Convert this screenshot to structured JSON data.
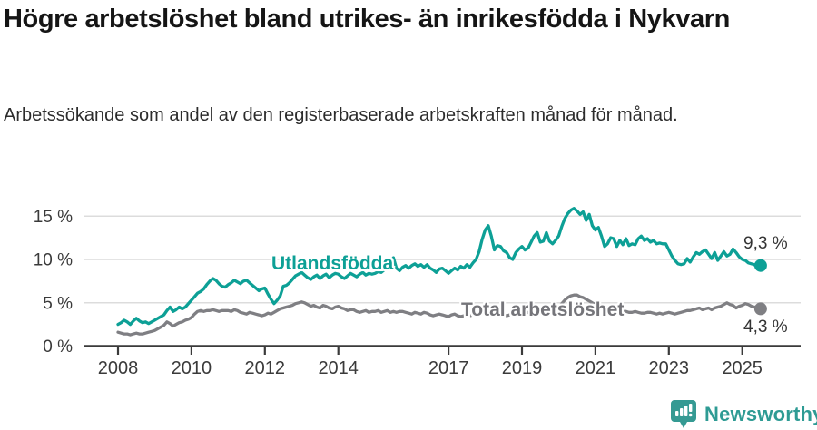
{
  "title": "Högre arbetslöshet bland utrikes- än inrikesfödda i Nykvarn",
  "subtitle": "Arbetssökande som andel av den registerbaserade arbetskraften månad för månad.",
  "branding": {
    "logo_text": "Newsworthy",
    "logo_color": "#2e9b94"
  },
  "chart_data": {
    "type": "line",
    "title": "Högre arbetslöshet bland utrikes- än inrikesfödda i Nykvarn",
    "subtitle": "Arbetssökande som andel av den registerbaserade arbetskraften månad för månad.",
    "xlabel": "",
    "ylabel": "",
    "grid": true,
    "legend_position": "inline-labels",
    "x_unit": "year-month",
    "x_start": 2008.0,
    "x_step": 0.0833333,
    "x_ticks": [
      2008,
      2010,
      2012,
      2014,
      2017,
      2019,
      2021,
      2023,
      2025
    ],
    "x_tick_labels": [
      "2008",
      "2010",
      "2012",
      "2014",
      "2017",
      "2019",
      "2021",
      "2023",
      "2025"
    ],
    "y_ticks": [
      0,
      5,
      10,
      15
    ],
    "y_tick_labels": [
      "0 %",
      "5 %",
      "10 %",
      "15 %"
    ],
    "ylim": [
      0,
      17.5
    ],
    "xlim": [
      2007.1,
      2026.6
    ],
    "series": [
      {
        "name": "Utlandsfödda",
        "color": "#0da096",
        "end_label": "9,3 %",
        "last_value": 9.3,
        "values": [
          2.5,
          2.7,
          3.0,
          2.8,
          2.5,
          2.9,
          3.2,
          2.9,
          2.7,
          2.8,
          2.6,
          2.8,
          3.0,
          3.2,
          3.4,
          3.6,
          4.1,
          4.5,
          4.0,
          4.2,
          4.5,
          4.3,
          4.5,
          4.9,
          5.3,
          5.7,
          6.1,
          6.3,
          6.6,
          7.1,
          7.5,
          7.8,
          7.6,
          7.2,
          6.9,
          6.8,
          7.1,
          7.3,
          7.6,
          7.4,
          7.2,
          7.5,
          7.6,
          7.3,
          7.0,
          6.7,
          6.4,
          6.6,
          6.7,
          6.0,
          5.4,
          4.9,
          5.3,
          5.8,
          6.9,
          7.0,
          7.3,
          7.7,
          8.1,
          8.3,
          8.5,
          8.2,
          7.9,
          7.7,
          8.0,
          8.2,
          7.8,
          8.1,
          8.3,
          7.9,
          8.2,
          8.4,
          8.3,
          8.0,
          7.8,
          8.1,
          8.4,
          8.2,
          8.0,
          8.3,
          8.5,
          8.2,
          8.4,
          8.3,
          8.4,
          8.6,
          8.5,
          8.8,
          9.2,
          9.6,
          10.2,
          9.0,
          8.7,
          9.1,
          9.3,
          9.0,
          9.3,
          9.5,
          9.2,
          9.4,
          9.1,
          9.4,
          9.0,
          8.8,
          8.5,
          8.9,
          9.0,
          8.7,
          8.4,
          8.7,
          9.0,
          8.8,
          9.2,
          9.0,
          9.4,
          9.1,
          9.6,
          10.0,
          10.9,
          12.3,
          13.4,
          13.9,
          12.7,
          11.1,
          11.6,
          11.5,
          11.0,
          10.8,
          10.2,
          10.0,
          10.8,
          11.2,
          11.5,
          11.1,
          11.3,
          12.0,
          12.7,
          13.1,
          12.0,
          12.1,
          13.1,
          12.1,
          11.8,
          12.2,
          12.7,
          13.8,
          14.7,
          15.3,
          15.7,
          15.9,
          15.6,
          15.2,
          15.5,
          14.5,
          15.2,
          13.9,
          13.4,
          13.7,
          12.7,
          11.5,
          11.8,
          12.5,
          12.4,
          11.5,
          12.2,
          11.7,
          12.4,
          11.6,
          11.8,
          11.7,
          12.4,
          12.7,
          12.2,
          12.4,
          12.0,
          12.2,
          11.8,
          11.9,
          11.8,
          11.8,
          11.1,
          10.4,
          9.9,
          9.5,
          9.4,
          9.5,
          10.1,
          9.7,
          10.3,
          10.8,
          10.6,
          10.9,
          11.1,
          10.6,
          10.1,
          10.8,
          9.9,
          10.4,
          10.9,
          10.4,
          10.6,
          11.2,
          10.8,
          10.3,
          10.0,
          9.9,
          9.6,
          9.5,
          9.4,
          9.0,
          9.3
        ]
      },
      {
        "name": "Total arbetslöshet",
        "color": "#7f7f83",
        "end_label": "4,3 %",
        "last_value": 4.3,
        "values": [
          1.6,
          1.5,
          1.4,
          1.4,
          1.3,
          1.4,
          1.5,
          1.4,
          1.4,
          1.5,
          1.6,
          1.7,
          1.8,
          2.0,
          2.2,
          2.4,
          2.8,
          2.6,
          2.3,
          2.5,
          2.7,
          2.8,
          3.0,
          3.1,
          3.3,
          3.7,
          4.0,
          4.1,
          4.0,
          4.1,
          4.1,
          4.2,
          4.1,
          4.0,
          4.1,
          4.1,
          4.1,
          4.0,
          4.2,
          4.1,
          3.9,
          3.8,
          3.7,
          3.9,
          3.8,
          3.7,
          3.6,
          3.5,
          3.6,
          3.8,
          3.7,
          3.9,
          4.1,
          4.3,
          4.4,
          4.5,
          4.6,
          4.7,
          4.9,
          5.0,
          5.1,
          5.0,
          4.8,
          4.6,
          4.7,
          4.5,
          4.4,
          4.7,
          4.6,
          4.4,
          4.3,
          4.5,
          4.6,
          4.4,
          4.3,
          4.1,
          4.2,
          4.2,
          4.0,
          3.9,
          4.0,
          4.1,
          3.9,
          4.0,
          4.0,
          4.1,
          3.9,
          4.0,
          4.1,
          3.9,
          4.0,
          3.9,
          4.0,
          4.0,
          3.9,
          3.8,
          3.7,
          3.9,
          3.8,
          3.7,
          3.9,
          3.8,
          3.6,
          3.5,
          3.6,
          3.7,
          3.6,
          3.5,
          3.4,
          3.6,
          3.7,
          3.5,
          3.4,
          3.5,
          3.6,
          3.5,
          3.6,
          3.7,
          3.8,
          3.9,
          3.8,
          3.9,
          3.8,
          3.7,
          3.8,
          3.7,
          3.6,
          3.5,
          3.6,
          3.5,
          3.6,
          3.7,
          3.7,
          3.8,
          3.9,
          3.8,
          3.9,
          4.0,
          3.9,
          4.0,
          4.1,
          4.0,
          4.1,
          4.2,
          4.5,
          4.9,
          5.3,
          5.6,
          5.8,
          5.9,
          5.9,
          5.7,
          5.6,
          5.4,
          5.2,
          5.0,
          4.8,
          4.7,
          4.6,
          4.5,
          4.4,
          4.3,
          4.2,
          4.2,
          4.1,
          4.0,
          4.0,
          3.9,
          3.9,
          4.0,
          3.9,
          3.8,
          3.8,
          3.9,
          3.9,
          3.8,
          3.7,
          3.8,
          3.7,
          3.8,
          3.9,
          3.8,
          3.7,
          3.8,
          3.9,
          4.0,
          4.1,
          4.1,
          4.2,
          4.3,
          4.4,
          4.2,
          4.3,
          4.4,
          4.2,
          4.4,
          4.5,
          4.6,
          4.8,
          5.0,
          4.8,
          4.7,
          4.4,
          4.6,
          4.7,
          4.9,
          4.8,
          4.6,
          4.5,
          4.5,
          4.3
        ]
      }
    ],
    "colors": {
      "axis": "#3a3a3a",
      "grid": "#dcdcdc",
      "tick_text": "#3a3a3a"
    }
  }
}
